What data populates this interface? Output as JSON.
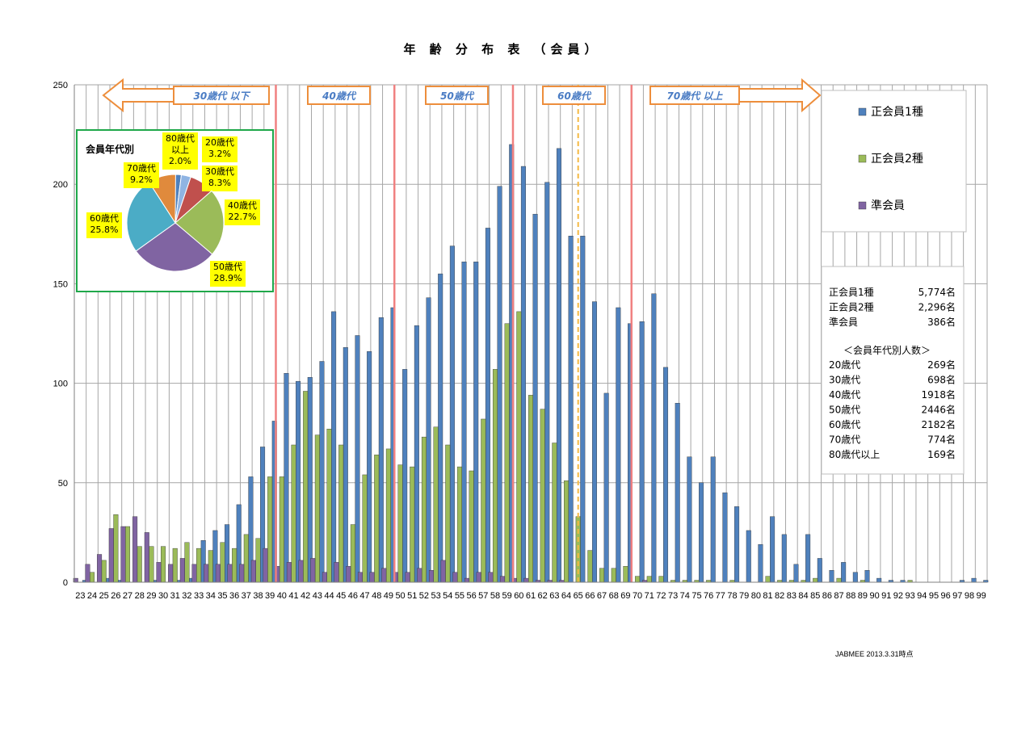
{
  "title": "年 齢 分 布 表 （会員）",
  "footer": "JABMEE  2013.3.31時点",
  "colors": {
    "s1": "#4f81bd",
    "s2": "#9bbb59",
    "s3": "#8064a2",
    "grid": "#a6a6a6",
    "age_line": "#f08080",
    "dash_line": "#f5b942",
    "arrow": "#ed8e3c",
    "pie_border": "#1fa84a",
    "label_bg": "#ffff00"
  },
  "bands": [
    {
      "label": "30歳代  以下",
      "arrow": "left"
    },
    {
      "label": "40歳代",
      "arrow": "none"
    },
    {
      "label": "50歳代",
      "arrow": "none"
    },
    {
      "label": "60歳代",
      "arrow": "none"
    },
    {
      "label": "70歳代  以上",
      "arrow": "right"
    }
  ],
  "legend": [
    "正会員1種",
    "正会員2種",
    "準会員"
  ],
  "stats": {
    "members": [
      {
        "label": "正会員1種",
        "value": "5,774名"
      },
      {
        "label": "正会員2種",
        "value": "2,296名"
      },
      {
        "label": "準会員",
        "value": "386名"
      }
    ],
    "by_age_title": "＜会員年代別人数＞",
    "by_age": [
      {
        "label": "20歳代",
        "value": "269名"
      },
      {
        "label": "30歳代",
        "value": "698名"
      },
      {
        "label": "40歳代",
        "value": "1918名"
      },
      {
        "label": "50歳代",
        "value": "2446名"
      },
      {
        "label": "60歳代",
        "value": "2182名"
      },
      {
        "label": "70歳代",
        "value": "774名"
      },
      {
        "label": "80歳代以上",
        "value": "169名"
      }
    ]
  },
  "pie": {
    "title": "会員年代別",
    "slices": [
      {
        "label": "80歳代以上",
        "pct": 2.0,
        "color": "#4f81bd",
        "text": [
          "80歳代",
          "以上",
          "2.0%"
        ]
      },
      {
        "label": "20歳代",
        "pct": 3.2,
        "color": "#8fb4e3",
        "text": [
          "20歳代",
          "3.2%"
        ]
      },
      {
        "label": "30歳代",
        "pct": 8.3,
        "color": "#c0504d",
        "text": [
          "30歳代",
          "8.3%"
        ]
      },
      {
        "label": "40歳代",
        "pct": 22.7,
        "color": "#9bbb59",
        "text": [
          "40歳代",
          "22.7%"
        ]
      },
      {
        "label": "50歳代",
        "pct": 28.9,
        "color": "#8064a2",
        "text": [
          "50歳代",
          "28.9%"
        ]
      },
      {
        "label": "60歳代",
        "pct": 25.8,
        "color": "#4bacc6",
        "text": [
          "60歳代",
          "25.8%"
        ]
      },
      {
        "label": "70歳代",
        "pct": 9.2,
        "color": "#e08a3c",
        "text": [
          "70歳代",
          "9.2%"
        ]
      }
    ]
  },
  "chart_data": {
    "type": "bar",
    "title": "年 齢 分 布 表 （会員）",
    "ylim": [
      0,
      250
    ],
    "yticks": [
      0,
      50,
      100,
      150,
      200,
      250
    ],
    "grid": true,
    "legend_position": "right",
    "categories": [
      23,
      24,
      25,
      26,
      27,
      28,
      29,
      30,
      31,
      32,
      33,
      34,
      35,
      36,
      37,
      38,
      39,
      40,
      41,
      42,
      43,
      44,
      45,
      46,
      47,
      48,
      49,
      50,
      51,
      52,
      53,
      54,
      55,
      56,
      57,
      58,
      59,
      60,
      61,
      62,
      63,
      64,
      65,
      66,
      67,
      68,
      69,
      70,
      71,
      72,
      73,
      74,
      75,
      76,
      77,
      78,
      79,
      80,
      81,
      82,
      83,
      84,
      85,
      86,
      87,
      88,
      89,
      90,
      91,
      92,
      93,
      94,
      95,
      96,
      97,
      98,
      99
    ],
    "series": [
      {
        "name": "正会員1種",
        "values": [
          1,
          0,
          2,
          1,
          0,
          0,
          1,
          0,
          1,
          2,
          21,
          26,
          29,
          39,
          53,
          68,
          81,
          105,
          101,
          103,
          111,
          136,
          118,
          124,
          116,
          133,
          138,
          107,
          129,
          143,
          155,
          169,
          161,
          161,
          178,
          199,
          220,
          209,
          185,
          201,
          218,
          174,
          174,
          141,
          95,
          138,
          130,
          131,
          145,
          108,
          90,
          63,
          50,
          63,
          45,
          38,
          26,
          19,
          33,
          24,
          9,
          24,
          12,
          6,
          10,
          5,
          6,
          2,
          1,
          1,
          0,
          0,
          0,
          0,
          1,
          2,
          1
        ]
      },
      {
        "name": "正会員2種",
        "values": [
          0,
          5,
          11,
          34,
          28,
          18,
          18,
          18,
          17,
          20,
          17,
          16,
          20,
          17,
          24,
          22,
          53,
          53,
          69,
          96,
          74,
          77,
          69,
          29,
          54,
          64,
          67,
          59,
          58,
          73,
          78,
          69,
          58,
          56,
          82,
          107,
          130,
          136,
          94,
          87,
          70,
          51,
          33,
          16,
          7,
          7,
          8,
          3,
          3,
          3,
          1,
          1,
          1,
          1,
          0,
          1,
          0,
          0,
          3,
          1,
          1,
          1,
          2,
          0,
          2,
          0,
          1,
          0,
          0,
          0,
          1,
          0,
          0,
          0,
          0,
          0,
          0
        ]
      },
      {
        "name": "準会員",
        "values": [
          2,
          9,
          14,
          27,
          28,
          33,
          25,
          10,
          9,
          12,
          9,
          9,
          9,
          9,
          9,
          11,
          17,
          8,
          10,
          11,
          12,
          5,
          10,
          8,
          5,
          5,
          7,
          5,
          5,
          7,
          6,
          11,
          5,
          2,
          5,
          5,
          3,
          2,
          2,
          1,
          1,
          1,
          0,
          0,
          0,
          0,
          0,
          0,
          1,
          0,
          0,
          0,
          0,
          0,
          0,
          0,
          0,
          0,
          0,
          0,
          0,
          0,
          0,
          0,
          0,
          0,
          0,
          0,
          0,
          0,
          0,
          0,
          0,
          0,
          0,
          0,
          0
        ]
      }
    ]
  }
}
